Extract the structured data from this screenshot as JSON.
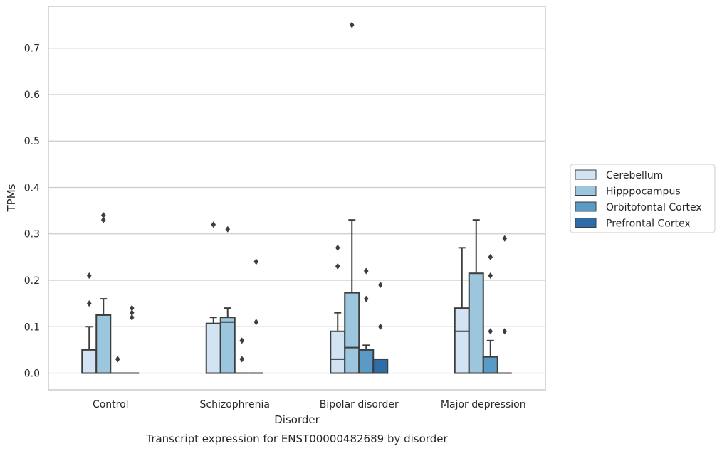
{
  "chart_data": {
    "type": "box",
    "title": "",
    "caption": "Transcript expression for ENST00000482689 by disorder",
    "xlabel": "Disorder",
    "ylabel": "TPMs",
    "ylim": [
      -0.036,
      0.79
    ],
    "yticks": [
      0.0,
      0.1,
      0.2,
      0.3,
      0.4,
      0.5,
      0.6,
      0.7
    ],
    "grid": "horizontal",
    "legend_position": "right",
    "categories": [
      "Control",
      "Schizophrenia",
      "Bipolar disorder",
      "Major depression"
    ],
    "series": [
      {
        "name": "Cerebellum",
        "color": "#d2e3f3",
        "boxes": [
          {
            "q1": 0.0,
            "median": 0.0,
            "q3": 0.05,
            "whisker_low": 0.0,
            "whisker_high": 0.1,
            "outliers": [
              0.15,
              0.21
            ]
          },
          {
            "q1": 0.0,
            "median": 0.0,
            "q3": 0.107,
            "whisker_low": 0.0,
            "whisker_high": 0.12,
            "outliers": [
              0.32
            ]
          },
          {
            "q1": 0.0,
            "median": 0.03,
            "q3": 0.09,
            "whisker_low": 0.0,
            "whisker_high": 0.13,
            "outliers": [
              0.23,
              0.27
            ]
          },
          {
            "q1": 0.0,
            "median": 0.09,
            "q3": 0.14,
            "whisker_low": 0.0,
            "whisker_high": 0.27,
            "outliers": []
          }
        ]
      },
      {
        "name": "Hipppocampus",
        "color": "#9cc6dd",
        "boxes": [
          {
            "q1": 0.0,
            "median": 0.0,
            "q3": 0.125,
            "whisker_low": 0.0,
            "whisker_high": 0.16,
            "outliers": [
              0.33,
              0.34
            ]
          },
          {
            "q1": 0.0,
            "median": 0.11,
            "q3": 0.12,
            "whisker_low": 0.0,
            "whisker_high": 0.14,
            "outliers": [
              0.31
            ]
          },
          {
            "q1": 0.0,
            "median": 0.055,
            "q3": 0.173,
            "whisker_low": 0.0,
            "whisker_high": 0.33,
            "outliers": [
              0.75
            ]
          },
          {
            "q1": 0.0,
            "median": 0.0,
            "q3": 0.215,
            "whisker_low": 0.0,
            "whisker_high": 0.33,
            "outliers": []
          }
        ]
      },
      {
        "name": "Orbitofontal Cortex",
        "color": "#5a9bc6",
        "boxes": [
          {
            "q1": 0.0,
            "median": 0.0,
            "q3": 0.0,
            "whisker_low": 0.0,
            "whisker_high": 0.0,
            "outliers": [
              0.03
            ]
          },
          {
            "q1": 0.0,
            "median": 0.0,
            "q3": 0.0,
            "whisker_low": 0.0,
            "whisker_high": 0.0,
            "outliers": [
              0.03,
              0.07
            ]
          },
          {
            "q1": 0.0,
            "median": 0.0,
            "q3": 0.05,
            "whisker_low": 0.0,
            "whisker_high": 0.06,
            "outliers": [
              0.16,
              0.22
            ]
          },
          {
            "q1": 0.0,
            "median": 0.0,
            "q3": 0.035,
            "whisker_low": 0.0,
            "whisker_high": 0.07,
            "outliers": [
              0.09,
              0.21,
              0.25
            ]
          }
        ]
      },
      {
        "name": "Prefrontal Cortex",
        "color": "#2d6ca6",
        "boxes": [
          {
            "q1": 0.0,
            "median": 0.0,
            "q3": 0.0,
            "whisker_low": 0.0,
            "whisker_high": 0.0,
            "outliers": [
              0.12,
              0.13,
              0.14
            ]
          },
          {
            "q1": 0.0,
            "median": 0.0,
            "q3": 0.0,
            "whisker_low": 0.0,
            "whisker_high": 0.0,
            "outliers": [
              0.11,
              0.24
            ]
          },
          {
            "q1": 0.0,
            "median": 0.0,
            "q3": 0.03,
            "whisker_low": 0.0,
            "whisker_high": 0.03,
            "outliers": [
              0.1,
              0.19
            ]
          },
          {
            "q1": 0.0,
            "median": 0.0,
            "q3": 0.0,
            "whisker_low": 0.0,
            "whisker_high": 0.0,
            "outliers": [
              0.09,
              0.29
            ]
          }
        ]
      }
    ]
  }
}
